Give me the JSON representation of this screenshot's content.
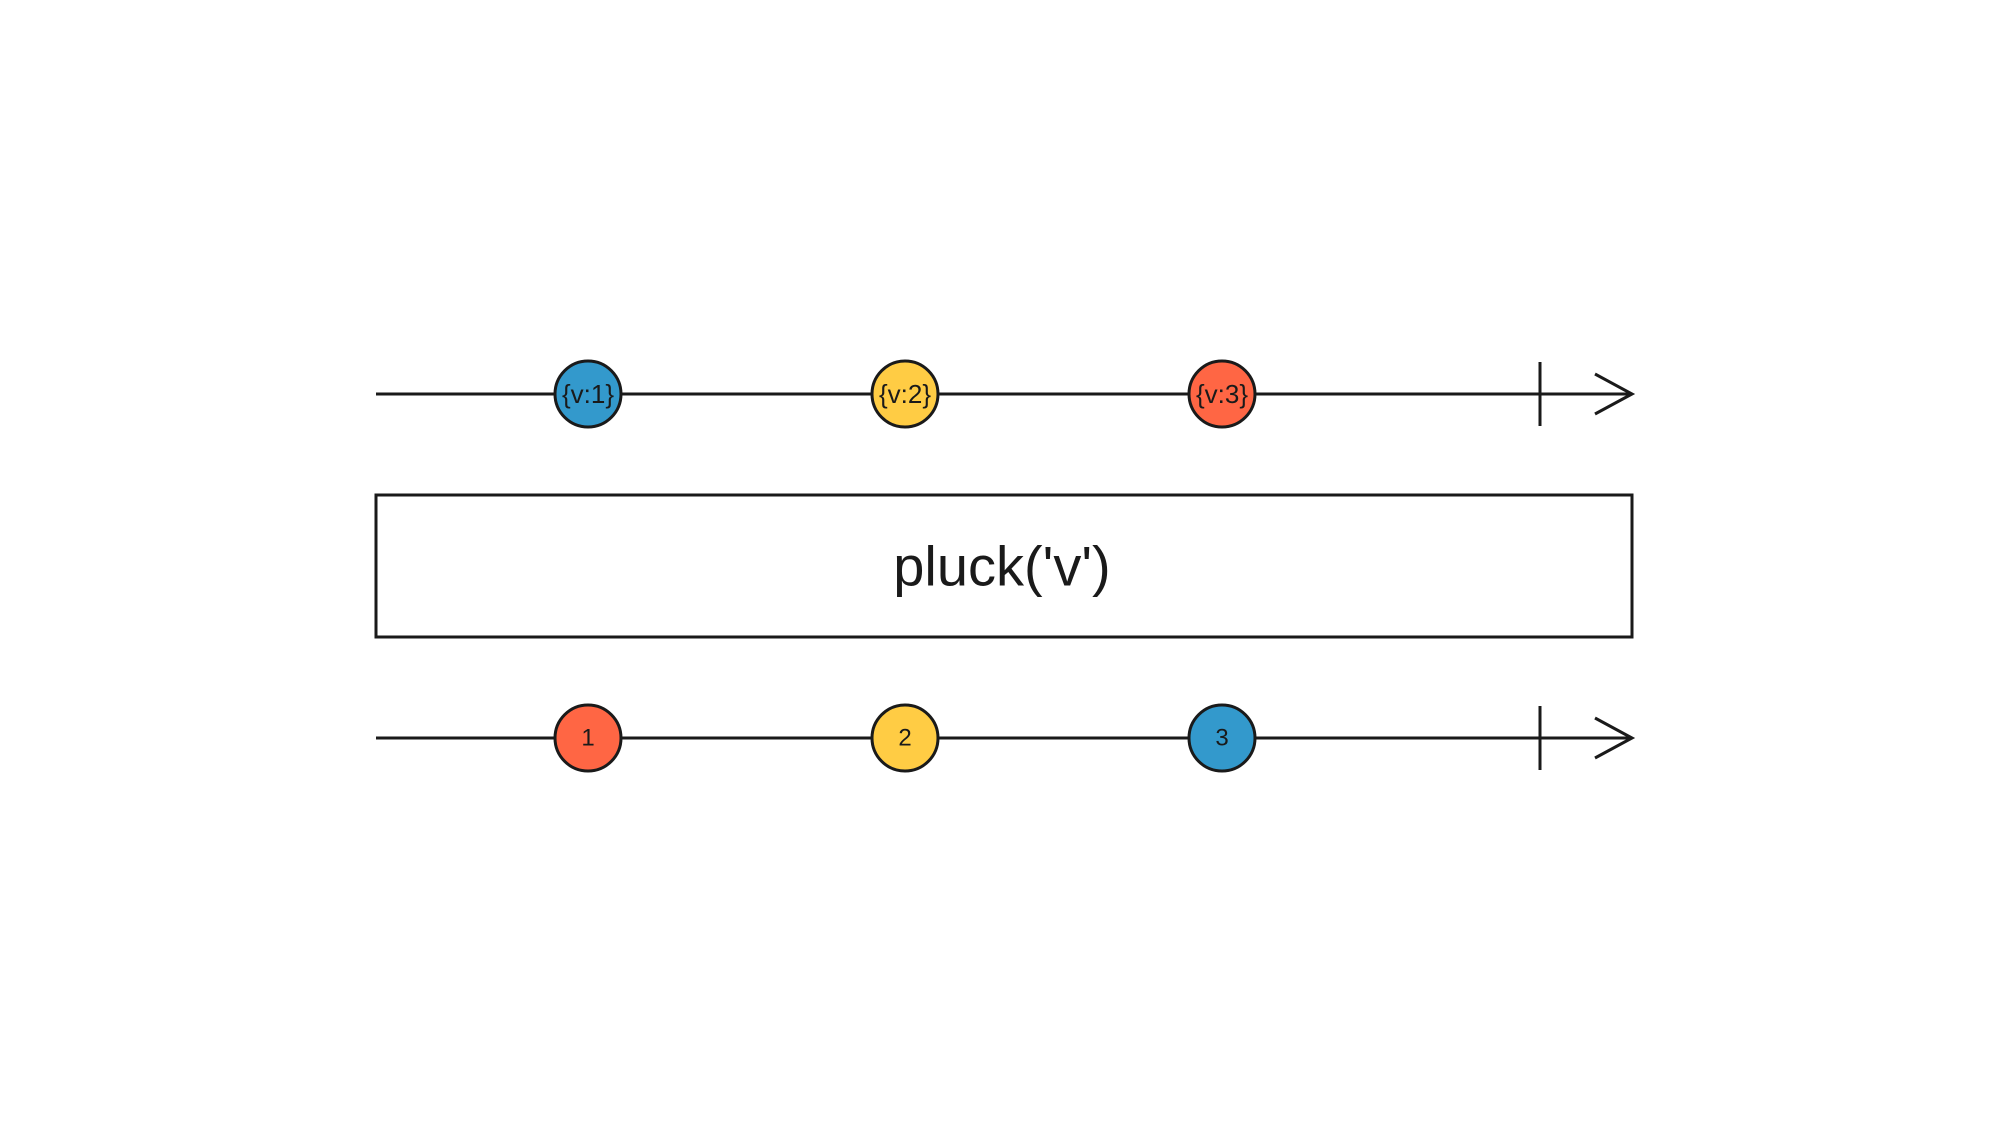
{
  "colors": {
    "blue": "#3399cc",
    "yellow": "#ffcc44",
    "red": "#ff6644",
    "stroke": "#1a1a1a",
    "background": "#ffffff"
  },
  "source_stream": {
    "marbles": [
      {
        "label": "{v:1}",
        "color": "#3399cc"
      },
      {
        "label": "{v:2}",
        "color": "#ffcc44"
      },
      {
        "label": "{v:3}",
        "color": "#ff6644"
      }
    ],
    "completed": true
  },
  "operator": {
    "label": "pluck('v')"
  },
  "result_stream": {
    "marbles": [
      {
        "label": "1",
        "color": "#ff6644"
      },
      {
        "label": "2",
        "color": "#ffcc44"
      },
      {
        "label": "3",
        "color": "#3399cc"
      }
    ],
    "completed": true
  }
}
